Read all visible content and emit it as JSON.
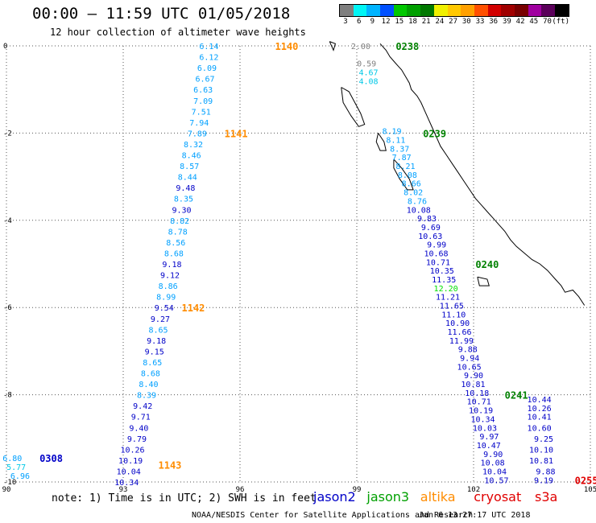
{
  "header": {
    "title": "00:00 – 11:59 UTC 01/05/2018",
    "subtitle": "12 hour collection of altimeter wave heights"
  },
  "colorbar": {
    "colors": [
      "#7f7f7f",
      "#00f5f5",
      "#00b4ff",
      "#0050ff",
      "#00c800",
      "#00a000",
      "#007800",
      "#f0f000",
      "#ffc800",
      "#ffa000",
      "#ff5000",
      "#d20000",
      "#a00000",
      "#780000",
      "#a000a0",
      "#5a005a",
      "#000000"
    ],
    "levels": [
      "3",
      "6",
      "9",
      "12",
      "15",
      "18",
      "21",
      "24",
      "27",
      "30",
      "33",
      "36",
      "39",
      "42",
      "45",
      "70",
      "(ft)"
    ]
  },
  "axes": {
    "lon": {
      "labels": [
        "90",
        "93",
        "96",
        "99",
        "102",
        "105"
      ],
      "min": 90,
      "max": 105
    },
    "lat": {
      "labels": [
        "0",
        "-2",
        "-4",
        "-6",
        "-8",
        "-10"
      ],
      "min": -10,
      "max": 0
    }
  },
  "colors": {
    "jason2": "#0000c8",
    "jason3": "#008000",
    "altika": "#ff8c00",
    "cryosat": "#e00000",
    "s3a": "#e00000",
    "cyan": "#00c8e6",
    "lightblue": "#00a0ff",
    "gray": "#808080"
  },
  "tracks": [
    {
      "id": "altika-1140-1143",
      "time_labels": [
        {
          "text": "1140",
          "color": "#ff8c00",
          "lon": 96.9,
          "lat": 0
        },
        {
          "text": "1141",
          "color": "#ff8c00",
          "lon": 95.6,
          "lat": -2
        },
        {
          "text": "1142",
          "color": "#ff8c00",
          "lon": 94.5,
          "lat": -6
        },
        {
          "text": "1143",
          "color": "#ff8c00",
          "lon": 93.9,
          "lat": -9.6
        }
      ],
      "points": [
        {
          "v": "6.14",
          "c": "#00a0ff",
          "lon": 95.45,
          "lat": 0
        },
        {
          "v": "6.12",
          "c": "#00a0ff",
          "lon": 95.45,
          "lat": -0.25
        },
        {
          "v": "6.09",
          "c": "#00a0ff",
          "lon": 95.4,
          "lat": -0.5
        },
        {
          "v": "6.67",
          "c": "#00a0ff",
          "lon": 95.35,
          "lat": -0.75
        },
        {
          "v": "6.63",
          "c": "#00a0ff",
          "lon": 95.3,
          "lat": -1
        },
        {
          "v": "7.09",
          "c": "#00a0ff",
          "lon": 95.3,
          "lat": -1.25
        },
        {
          "v": "7.51",
          "c": "#00a0ff",
          "lon": 95.25,
          "lat": -1.5
        },
        {
          "v": "7.94",
          "c": "#00a0ff",
          "lon": 95.2,
          "lat": -1.75
        },
        {
          "v": "7.89",
          "c": "#00a0ff",
          "lon": 95.15,
          "lat": -2
        },
        {
          "v": "8.32",
          "c": "#00a0ff",
          "lon": 95.05,
          "lat": -2.25
        },
        {
          "v": "8.46",
          "c": "#00a0ff",
          "lon": 95.0,
          "lat": -2.5
        },
        {
          "v": "8.57",
          "c": "#00a0ff",
          "lon": 94.95,
          "lat": -2.75
        },
        {
          "v": "8.44",
          "c": "#00a0ff",
          "lon": 94.9,
          "lat": -3
        },
        {
          "v": "9.48",
          "c": "#0000c8",
          "lon": 94.85,
          "lat": -3.25
        },
        {
          "v": "8.35",
          "c": "#00a0ff",
          "lon": 94.8,
          "lat": -3.5
        },
        {
          "v": "9.30",
          "c": "#0000c8",
          "lon": 94.75,
          "lat": -3.75
        },
        {
          "v": "8.82",
          "c": "#00a0ff",
          "lon": 94.7,
          "lat": -4
        },
        {
          "v": "8.78",
          "c": "#00a0ff",
          "lon": 94.65,
          "lat": -4.25
        },
        {
          "v": "8.56",
          "c": "#00a0ff",
          "lon": 94.6,
          "lat": -4.5
        },
        {
          "v": "8.68",
          "c": "#00a0ff",
          "lon": 94.55,
          "lat": -4.75
        },
        {
          "v": "9.18",
          "c": "#0000c8",
          "lon": 94.5,
          "lat": -5
        },
        {
          "v": "9.12",
          "c": "#0000c8",
          "lon": 94.45,
          "lat": -5.25
        },
        {
          "v": "8.86",
          "c": "#00a0ff",
          "lon": 94.4,
          "lat": -5.5
        },
        {
          "v": "8.99",
          "c": "#00a0ff",
          "lon": 94.35,
          "lat": -5.75
        },
        {
          "v": "9.54",
          "c": "#0000c8",
          "lon": 94.3,
          "lat": -6
        },
        {
          "v": "9.27",
          "c": "#0000c8",
          "lon": 94.2,
          "lat": -6.25
        },
        {
          "v": "8.65",
          "c": "#00a0ff",
          "lon": 94.15,
          "lat": -6.5
        },
        {
          "v": "9.18",
          "c": "#0000c8",
          "lon": 94.1,
          "lat": -6.75
        },
        {
          "v": "9.15",
          "c": "#0000c8",
          "lon": 94.05,
          "lat": -7
        },
        {
          "v": "8.65",
          "c": "#00a0ff",
          "lon": 94.0,
          "lat": -7.25
        },
        {
          "v": "8.68",
          "c": "#00a0ff",
          "lon": 93.95,
          "lat": -7.5
        },
        {
          "v": "8.40",
          "c": "#00a0ff",
          "lon": 93.9,
          "lat": -7.75
        },
        {
          "v": "8.39",
          "c": "#00a0ff",
          "lon": 93.85,
          "lat": -8
        },
        {
          "v": "9.42",
          "c": "#0000c8",
          "lon": 93.75,
          "lat": -8.25
        },
        {
          "v": "9.71",
          "c": "#0000c8",
          "lon": 93.7,
          "lat": -8.5
        },
        {
          "v": "9.40",
          "c": "#0000c8",
          "lon": 93.65,
          "lat": -8.75
        },
        {
          "v": "9.79",
          "c": "#0000c8",
          "lon": 93.6,
          "lat": -9
        },
        {
          "v": "10.26",
          "c": "#0000c8",
          "lon": 93.55,
          "lat": -9.25
        },
        {
          "v": "10.19",
          "c": "#0000c8",
          "lon": 93.5,
          "lat": -9.5
        },
        {
          "v": "10.04",
          "c": "#0000c8",
          "lon": 93.45,
          "lat": -9.75
        },
        {
          "v": "10.34",
          "c": "#0000c8",
          "lon": 93.4,
          "lat": -10
        }
      ]
    },
    {
      "id": "jason3-0238-0241",
      "time_labels": [
        {
          "text": "0238",
          "color": "#008000",
          "lon": 100.0,
          "lat": 0
        },
        {
          "text": "0239",
          "color": "#008000",
          "lon": 100.7,
          "lat": -2
        },
        {
          "text": "0240",
          "color": "#008000",
          "lon": 102.05,
          "lat": -5
        },
        {
          "text": "0241",
          "color": "#008000",
          "lon": 102.8,
          "lat": -8
        }
      ],
      "points": [
        {
          "v": "2.00",
          "c": "#808080",
          "lon": 99.35,
          "lat": 0
        },
        {
          "v": "0.59",
          "c": "#808080",
          "lon": 99.5,
          "lat": -0.4
        },
        {
          "v": "4.67",
          "c": "#00c8e6",
          "lon": 99.55,
          "lat": -0.6
        },
        {
          "v": "4.08",
          "c": "#00c8e6",
          "lon": 99.55,
          "lat": -0.8
        },
        {
          "v": "8.19",
          "c": "#00a0ff",
          "lon": 100.15,
          "lat": -1.95
        },
        {
          "v": "8.11",
          "c": "#00a0ff",
          "lon": 100.25,
          "lat": -2.15
        },
        {
          "v": "8.37",
          "c": "#00a0ff",
          "lon": 100.35,
          "lat": -2.35
        },
        {
          "v": "7.87",
          "c": "#00a0ff",
          "lon": 100.4,
          "lat": -2.55
        },
        {
          "v": "8.21",
          "c": "#00a0ff",
          "lon": 100.5,
          "lat": -2.75
        },
        {
          "v": "8.08",
          "c": "#00a0ff",
          "lon": 100.55,
          "lat": -2.95
        },
        {
          "v": "8.66",
          "c": "#00a0ff",
          "lon": 100.65,
          "lat": -3.15
        },
        {
          "v": "8.02",
          "c": "#00a0ff",
          "lon": 100.7,
          "lat": -3.35
        },
        {
          "v": "8.76",
          "c": "#00a0ff",
          "lon": 100.8,
          "lat": -3.55
        },
        {
          "v": "10.08",
          "c": "#0000c8",
          "lon": 100.9,
          "lat": -3.75
        },
        {
          "v": "9.83",
          "c": "#0000c8",
          "lon": 101.05,
          "lat": -3.95
        },
        {
          "v": "9.69",
          "c": "#0000c8",
          "lon": 101.15,
          "lat": -4.15
        },
        {
          "v": "10.63",
          "c": "#0000c8",
          "lon": 101.2,
          "lat": -4.35
        },
        {
          "v": "9.99",
          "c": "#0000c8",
          "lon": 101.3,
          "lat": -4.55
        },
        {
          "v": "10.68",
          "c": "#0000c8",
          "lon": 101.35,
          "lat": -4.75
        },
        {
          "v": "10.71",
          "c": "#0000c8",
          "lon": 101.4,
          "lat": -4.95
        },
        {
          "v": "10.35",
          "c": "#0000c8",
          "lon": 101.5,
          "lat": -5.15
        },
        {
          "v": "11.35",
          "c": "#0000c8",
          "lon": 101.55,
          "lat": -5.35
        },
        {
          "v": "12.20",
          "c": "#00e000",
          "lon": 101.6,
          "lat": -5.55
        },
        {
          "v": "11.21",
          "c": "#0000c8",
          "lon": 101.65,
          "lat": -5.75
        },
        {
          "v": "11.65",
          "c": "#0000c8",
          "lon": 101.75,
          "lat": -5.95
        },
        {
          "v": "11.10",
          "c": "#0000c8",
          "lon": 101.8,
          "lat": -6.15
        },
        {
          "v": "10.90",
          "c": "#0000c8",
          "lon": 101.9,
          "lat": -6.35
        },
        {
          "v": "11.66",
          "c": "#0000c8",
          "lon": 101.95,
          "lat": -6.55
        },
        {
          "v": "11.99",
          "c": "#0000c8",
          "lon": 102.0,
          "lat": -6.75
        },
        {
          "v": "9.88",
          "c": "#0000c8",
          "lon": 102.1,
          "lat": -6.95
        },
        {
          "v": "9.94",
          "c": "#0000c8",
          "lon": 102.15,
          "lat": -7.15
        },
        {
          "v": "10.65",
          "c": "#0000c8",
          "lon": 102.2,
          "lat": -7.35
        },
        {
          "v": "9.90",
          "c": "#0000c8",
          "lon": 102.25,
          "lat": -7.55
        },
        {
          "v": "10.81",
          "c": "#0000c8",
          "lon": 102.3,
          "lat": -7.75
        },
        {
          "v": "10.18",
          "c": "#0000c8",
          "lon": 102.4,
          "lat": -7.95
        },
        {
          "v": "10.71",
          "c": "#0000c8",
          "lon": 102.45,
          "lat": -8.15
        },
        {
          "v": "10.19",
          "c": "#0000c8",
          "lon": 102.5,
          "lat": -8.35
        },
        {
          "v": "10.34",
          "c": "#0000c8",
          "lon": 102.55,
          "lat": -8.55
        },
        {
          "v": "10.03",
          "c": "#0000c8",
          "lon": 102.6,
          "lat": -8.75
        },
        {
          "v": "9.97",
          "c": "#0000c8",
          "lon": 102.65,
          "lat": -8.95
        },
        {
          "v": "10.47",
          "c": "#0000c8",
          "lon": 102.7,
          "lat": -9.15
        },
        {
          "v": "9.90",
          "c": "#0000c8",
          "lon": 102.75,
          "lat": -9.35
        },
        {
          "v": "10.08",
          "c": "#0000c8",
          "lon": 102.8,
          "lat": -9.55
        },
        {
          "v": "10.04",
          "c": "#0000c8",
          "lon": 102.85,
          "lat": -9.75
        },
        {
          "v": "10.57",
          "c": "#0000c8",
          "lon": 102.9,
          "lat": -9.95
        }
      ]
    },
    {
      "id": "cryosat-0255",
      "time_labels": [
        {
          "text": "0255",
          "color": "#e00000",
          "lon": 104.6,
          "lat": -9.95
        }
      ],
      "points": [
        {
          "v": "10.44",
          "c": "#0000c8",
          "lon": 104.0,
          "lat": -8.1
        },
        {
          "v": "10.26",
          "c": "#0000c8",
          "lon": 104.0,
          "lat": -8.3
        },
        {
          "v": "10.41",
          "c": "#0000c8",
          "lon": 104.0,
          "lat": -8.5
        },
        {
          "v": "10.60",
          "c": "#0000c8",
          "lon": 104.0,
          "lat": -8.75
        },
        {
          "v": "9.25",
          "c": "#0000c8",
          "lon": 104.05,
          "lat": -9
        },
        {
          "v": "10.10",
          "c": "#0000c8",
          "lon": 104.05,
          "lat": -9.25
        },
        {
          "v": "10.81",
          "c": "#0000c8",
          "lon": 104.05,
          "lat": -9.5
        },
        {
          "v": "9.88",
          "c": "#0000c8",
          "lon": 104.1,
          "lat": -9.75
        },
        {
          "v": "9.19",
          "c": "#0000c8",
          "lon": 104.05,
          "lat": -9.95
        }
      ]
    },
    {
      "id": "jason2-0308",
      "time_labels": [
        {
          "text": "0308",
          "color": "#0000c8",
          "lon": 90.85,
          "lat": -9.45
        }
      ],
      "points": [
        {
          "v": "6.80",
          "c": "#00a0ff",
          "lon": 90.4,
          "lat": -9.45
        },
        {
          "v": "5.77",
          "c": "#00c8e6",
          "lon": 90.5,
          "lat": -9.65
        },
        {
          "v": "6.96",
          "c": "#00a0ff",
          "lon": 90.6,
          "lat": -9.85
        }
      ]
    }
  ],
  "coastline": [
    {
      "name": "sumatra-coast",
      "points": [
        [
          99.6,
          0.05
        ],
        [
          99.75,
          -0.1
        ],
        [
          99.85,
          -0.25
        ],
        [
          99.95,
          -0.35
        ],
        [
          100.05,
          -0.45
        ],
        [
          100.15,
          -0.55
        ],
        [
          100.25,
          -0.7
        ],
        [
          100.35,
          -0.85
        ],
        [
          100.4,
          -1.0
        ],
        [
          100.55,
          -1.15
        ],
        [
          100.65,
          -1.3
        ],
        [
          100.75,
          -1.5
        ],
        [
          100.85,
          -1.7
        ],
        [
          100.95,
          -1.9
        ],
        [
          101.05,
          -2.1
        ],
        [
          101.15,
          -2.3
        ],
        [
          101.3,
          -2.5
        ],
        [
          101.45,
          -2.7
        ],
        [
          101.6,
          -2.9
        ],
        [
          101.75,
          -3.1
        ],
        [
          101.9,
          -3.3
        ],
        [
          102.05,
          -3.5
        ],
        [
          102.2,
          -3.65
        ],
        [
          102.35,
          -3.8
        ],
        [
          102.5,
          -3.95
        ],
        [
          102.65,
          -4.1
        ],
        [
          102.8,
          -4.25
        ],
        [
          102.95,
          -4.45
        ],
        [
          103.1,
          -4.6
        ],
        [
          103.3,
          -4.75
        ],
        [
          103.5,
          -4.9
        ],
        [
          103.7,
          -5.0
        ],
        [
          103.9,
          -5.15
        ],
        [
          104.1,
          -5.35
        ],
        [
          104.25,
          -5.5
        ],
        [
          104.35,
          -5.65
        ],
        [
          104.55,
          -5.6
        ],
        [
          104.7,
          -5.75
        ],
        [
          104.85,
          -5.95
        ]
      ]
    },
    {
      "name": "siberut-island",
      "points": [
        [
          98.6,
          -0.95
        ],
        [
          98.8,
          -1.05
        ],
        [
          98.95,
          -1.3
        ],
        [
          99.1,
          -1.55
        ],
        [
          99.2,
          -1.8
        ],
        [
          99.05,
          -1.85
        ],
        [
          98.85,
          -1.6
        ],
        [
          98.65,
          -1.3
        ],
        [
          98.6,
          -0.95
        ]
      ]
    },
    {
      "name": "sipora-island",
      "points": [
        [
          99.55,
          -2.0
        ],
        [
          99.7,
          -2.2
        ],
        [
          99.75,
          -2.4
        ],
        [
          99.6,
          -2.4
        ],
        [
          99.5,
          -2.2
        ],
        [
          99.55,
          -2.0
        ]
      ]
    },
    {
      "name": "pagai-islands",
      "points": [
        [
          99.95,
          -2.6
        ],
        [
          100.15,
          -2.8
        ],
        [
          100.35,
          -3.05
        ],
        [
          100.45,
          -3.3
        ],
        [
          100.3,
          -3.3
        ],
        [
          100.1,
          -3.05
        ],
        [
          99.95,
          -2.8
        ],
        [
          99.95,
          -2.6
        ]
      ]
    },
    {
      "name": "enggano-island",
      "points": [
        [
          102.1,
          -5.3
        ],
        [
          102.35,
          -5.35
        ],
        [
          102.4,
          -5.5
        ],
        [
          102.15,
          -5.5
        ],
        [
          102.1,
          -5.3
        ]
      ]
    },
    {
      "name": "pini-islet",
      "points": [
        [
          98.3,
          0.1
        ],
        [
          98.45,
          0.05
        ],
        [
          98.4,
          -0.1
        ],
        [
          98.3,
          0.1
        ]
      ]
    }
  ],
  "footer": {
    "note": "note: 1) Time is in UTC; 2) SWH is in feet",
    "legend": [
      {
        "label": "jason2",
        "color": "#0000c8"
      },
      {
        "label": "jason3",
        "color": "#00a000"
      },
      {
        "label": "altika",
        "color": "#ff8c00"
      },
      {
        "label": "cryosat",
        "color": "#e00000"
      },
      {
        "label": "s3a",
        "color": "#e00000"
      }
    ],
    "credit": "NOAA/NESDIS Center for Satellite Applications and Research",
    "timestamp": "Jan  6 13:27:17 UTC 2018"
  }
}
